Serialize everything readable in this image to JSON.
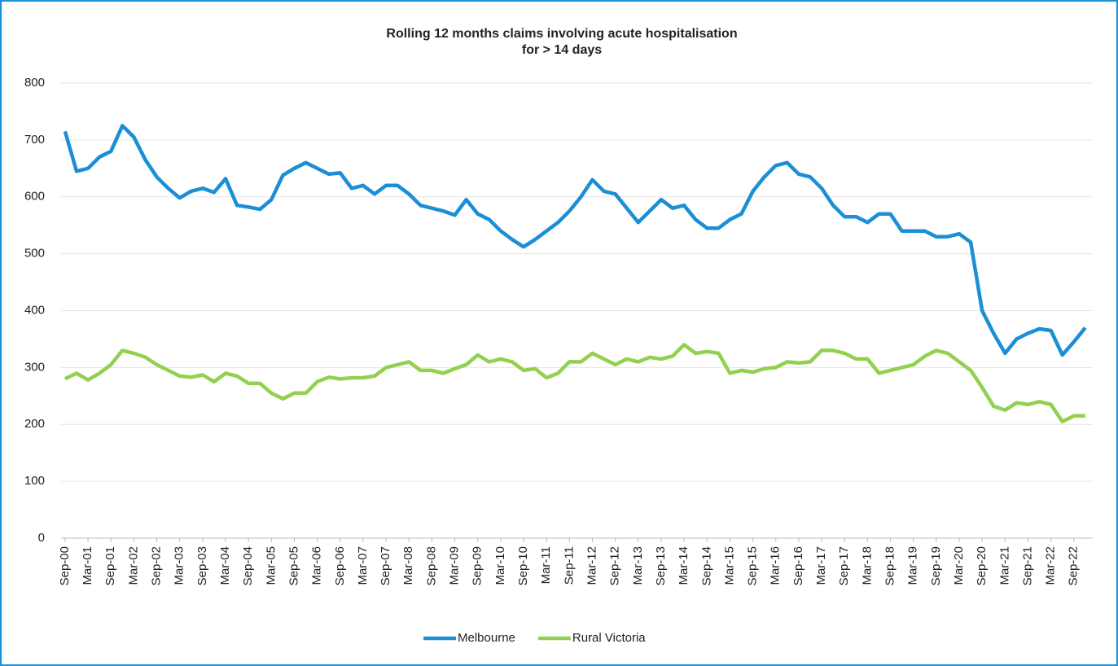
{
  "chart_data": {
    "type": "line",
    "title": [
      "Rolling 12 months claims involving acute hospitalisation",
      "for > 14 days"
    ],
    "categories": [
      "Sep-00",
      null,
      "Mar-01",
      null,
      "Sep-01",
      null,
      "Mar-02",
      null,
      "Sep-02",
      null,
      "Mar-03",
      null,
      "Sep-03",
      null,
      "Mar-04",
      null,
      "Sep-04",
      null,
      "Mar-05",
      null,
      "Sep-05",
      null,
      "Mar-06",
      null,
      "Sep-06",
      null,
      "Mar-07",
      null,
      "Sep-07",
      null,
      "Mar-08",
      null,
      "Sep-08",
      null,
      "Mar-09",
      null,
      "Sep-09",
      null,
      "Mar-10",
      null,
      "Sep-10",
      null,
      "Mar-11",
      null,
      "Sep-11",
      null,
      "Mar-12",
      null,
      "Sep-12",
      null,
      "Mar-13",
      null,
      "Sep-13",
      null,
      "Mar-14",
      null,
      "Sep-14",
      null,
      "Mar-15",
      null,
      "Sep-15",
      null,
      "Mar-16",
      null,
      "Sep-16",
      null,
      "Mar-17",
      null,
      "Sep-17",
      null,
      "Mar-18",
      null,
      "Sep-18",
      null,
      "Mar-19",
      null,
      "Sep-19",
      null,
      "Mar-20",
      null,
      "Sep-20",
      null,
      "Mar-21",
      null,
      "Sep-21",
      null,
      "Mar-22",
      null,
      "Sep-22",
      null
    ],
    "series": [
      {
        "name": "Melbourne",
        "color": "#1a8fd6",
        "values": [
          715,
          645,
          650,
          670,
          680,
          725,
          705,
          665,
          635,
          615,
          598,
          610,
          615,
          608,
          632,
          585,
          582,
          578,
          595,
          638,
          650,
          660,
          650,
          640,
          642,
          615,
          620,
          605,
          620,
          620,
          605,
          585,
          580,
          575,
          568,
          595,
          570,
          560,
          540,
          525,
          512,
          525,
          540,
          555,
          575,
          600,
          630,
          610,
          605,
          580,
          555,
          575,
          595,
          580,
          585,
          560,
          545,
          545,
          560,
          570,
          610,
          635,
          655,
          660,
          640,
          635,
          615,
          585,
          565,
          565,
          555,
          570,
          570,
          540,
          540,
          540,
          530,
          530,
          535,
          520,
          400,
          360,
          325,
          350,
          360,
          368,
          365,
          322,
          345,
          370
        ]
      },
      {
        "name": "Rural Victoria",
        "color": "#92d050",
        "values": [
          280,
          290,
          278,
          290,
          305,
          330,
          325,
          318,
          305,
          295,
          285,
          283,
          287,
          275,
          290,
          285,
          272,
          272,
          255,
          245,
          255,
          255,
          275,
          283,
          280,
          282,
          282,
          285,
          300,
          305,
          310,
          295,
          295,
          290,
          298,
          305,
          322,
          310,
          315,
          310,
          295,
          298,
          282,
          290,
          310,
          310,
          325,
          315,
          305,
          315,
          310,
          318,
          315,
          320,
          340,
          325,
          328,
          325,
          290,
          295,
          292,
          298,
          300,
          310,
          308,
          310,
          330,
          330,
          325,
          315,
          315,
          290,
          295,
          300,
          305,
          320,
          330,
          325,
          310,
          295,
          265,
          232,
          225,
          238,
          235,
          240,
          235,
          205,
          215,
          215
        ]
      }
    ],
    "ylim": [
      0,
      800
    ],
    "yticks": [
      0,
      100,
      200,
      300,
      400,
      500,
      600,
      700,
      800
    ],
    "grid": true,
    "legend": "bottom"
  }
}
